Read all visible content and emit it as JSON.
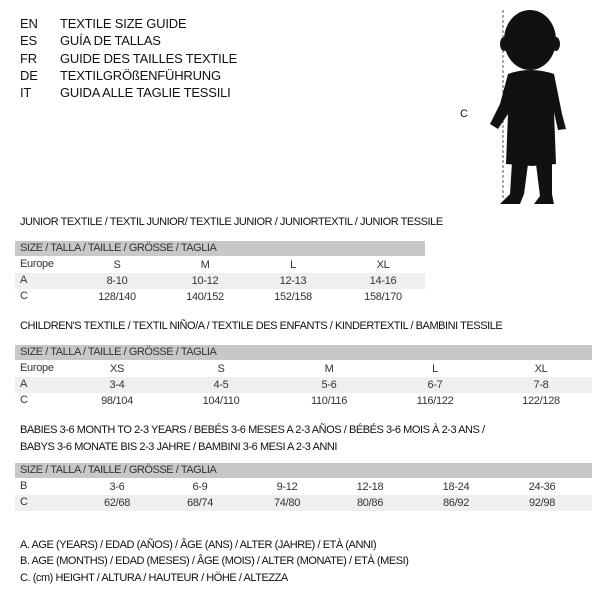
{
  "header": {
    "languages": [
      {
        "code": "EN",
        "title": "TEXTILE SIZE GUIDE"
      },
      {
        "code": "ES",
        "title": "GUÍA DE TALLAS"
      },
      {
        "code": "FR",
        "title": "GUIDE DES TAILLES TEXTILE"
      },
      {
        "code": "DE",
        "title": "TEXTILGRÖßENFÜHRUNG"
      },
      {
        "code": "IT",
        "title": "GUIDA ALLE TAGLIE TESSILI"
      }
    ],
    "figure_label": "C"
  },
  "size_header": "SIZE / TALLA / TAILLE / GRÖSSE / TAGLIA",
  "junior": {
    "title": "JUNIOR TEXTILE / TEXTIL JUNIOR/ TEXTILE JUNIOR / JUNIORTEXTIL / JUNIOR TESSILE",
    "rows": [
      {
        "label": "Europe",
        "values": [
          "S",
          "M",
          "L",
          "XL"
        ]
      },
      {
        "label": "A",
        "values": [
          "8-10",
          "10-12",
          "12-13",
          "14-16"
        ]
      },
      {
        "label": "C",
        "values": [
          "128/140",
          "140/152",
          "152/158",
          "158/170"
        ]
      }
    ]
  },
  "children": {
    "title": "CHILDREN'S TEXTILE / TEXTIL NIÑO/A / TEXTILE DES ENFANTS / KINDERTEXTIL / BAMBINI TESSILE",
    "rows": [
      {
        "label": "Europe",
        "values": [
          "XS",
          "S",
          "M",
          "L",
          "XL"
        ]
      },
      {
        "label": "A",
        "values": [
          "3-4",
          "4-5",
          "5-6",
          "6-7",
          "7-8"
        ]
      },
      {
        "label": "C",
        "values": [
          "98/104",
          "104/110",
          "110/116",
          "116/122",
          "122/128"
        ]
      }
    ]
  },
  "babies": {
    "title_line1": "BABIES 3-6 MONTH TO 2-3 YEARS / BEBÉS 3-6 MESES A 2-3 AÑOS / BÉBÉS 3-6 MOIS À 2-3 ANS /",
    "title_line2": "BABYS 3-6 MONATE BIS 2-3 JAHRE / BAMBINI 3-6 MESI A 2-3 ANNI",
    "rows": [
      {
        "label": "B",
        "values": [
          "3-6",
          "6-9",
          "9-12",
          "12-18",
          "18-24",
          "24-36"
        ]
      },
      {
        "label": "C",
        "values": [
          "62/68",
          "68/74",
          "74/80",
          "80/86",
          "86/92",
          "92/98"
        ]
      }
    ]
  },
  "legend": [
    "A. AGE (YEARS) / EDAD (AÑOS) / ÂGE (ANS) / ALTER (JAHRE) / ETÀ (ANNI)",
    "B. AGE (MONTHS) / EDAD (MESES) / ÂGE (MOIS) / ALTER (MONATE) / ETÀ (MESI)",
    "C. (cm) HEIGHT / ALTURA / HAUTEUR / HÖHE / ALTEZZA"
  ]
}
